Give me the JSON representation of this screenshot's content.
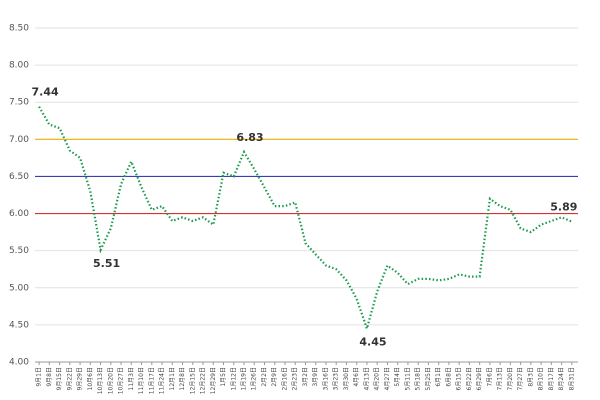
{
  "chart_data": {
    "type": "line",
    "categories": [
      "9月1日",
      "9月8日",
      "9月15日",
      "9月22日",
      "9月29日",
      "10月6日",
      "10月13日",
      "10月20日",
      "10月27日",
      "11月3日",
      "11月10日",
      "11月17日",
      "11月24日",
      "12月1日",
      "12月8日",
      "12月15日",
      "12月22日",
      "12月29日",
      "1月5日",
      "1月12日",
      "1月19日",
      "1月26日",
      "2月2日",
      "2月9日",
      "2月16日",
      "2月23日",
      "3月2日",
      "3月9日",
      "3月16日",
      "3月23日",
      "3月30日",
      "4月6日",
      "4月13日",
      "4月20日",
      "4月27日",
      "5月4日",
      "5月11日",
      "5月18日",
      "5月25日",
      "6月1日",
      "6月8日",
      "6月15日",
      "6月22日",
      "6月29日",
      "7月6日",
      "7月13日",
      "7月20日",
      "7月27日",
      "8月3日",
      "8月10日",
      "8月17日",
      "8月24日",
      "8月31日"
    ],
    "series": [
      {
        "color": "#1a9a4a",
        "values": [
          7.44,
          7.2,
          7.15,
          6.85,
          6.75,
          6.3,
          5.51,
          5.8,
          6.4,
          6.7,
          6.35,
          6.05,
          6.1,
          5.9,
          5.95,
          5.9,
          5.95,
          5.85,
          6.55,
          6.5,
          6.83,
          6.6,
          6.35,
          6.1,
          6.1,
          6.15,
          5.6,
          5.45,
          5.3,
          5.25,
          5.1,
          4.85,
          4.45,
          4.95,
          5.3,
          5.2,
          5.05,
          5.12,
          5.12,
          5.1,
          5.12,
          5.18,
          5.15,
          5.15,
          6.2,
          6.1,
          6.05,
          5.8,
          5.75,
          5.85,
          5.9,
          5.95,
          5.89
        ]
      }
    ],
    "annotated_indices": [
      0,
      6,
      20,
      32,
      52
    ],
    "reference_lines": [
      {
        "value": 7.0,
        "color": "#e8b400"
      },
      {
        "value": 6.5,
        "color": "#3c3cb8"
      },
      {
        "value": 6.0,
        "color": "#d83030"
      }
    ],
    "ylim": [
      4.0,
      8.5
    ],
    "yticks": [
      {
        "value": 4.0,
        "label": "4.00"
      },
      {
        "value": 4.5,
        "label": "4.50"
      },
      {
        "value": 5.0,
        "label": "5.00"
      },
      {
        "value": 5.5,
        "label": "5.50"
      },
      {
        "value": 6.0,
        "label": "6.00"
      },
      {
        "value": 6.5,
        "label": "6.50"
      },
      {
        "value": 7.0,
        "label": "7.00"
      },
      {
        "value": 7.5,
        "label": "7.50"
      },
      {
        "value": 8.0,
        "label": "8.00"
      },
      {
        "value": 8.5,
        "label": "8.50"
      }
    ],
    "grid": true
  }
}
